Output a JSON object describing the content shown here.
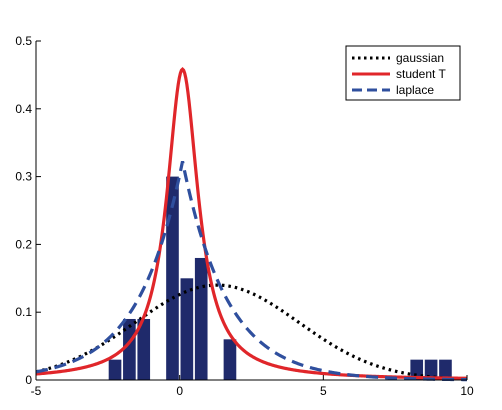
{
  "chart_data": {
    "type": "bar+line",
    "title": "",
    "xlabel": "",
    "ylabel": "",
    "xlim": [
      -5,
      10
    ],
    "ylim": [
      0,
      0.5
    ],
    "x_ticks": [
      -5,
      0,
      5,
      10
    ],
    "x_tick_labels": [
      "-5",
      "0",
      "5",
      "10"
    ],
    "y_ticks": [
      0,
      0.1,
      0.2,
      0.3,
      0.4,
      0.5
    ],
    "y_tick_labels": [
      "0",
      "0.1",
      "0.2",
      "0.3",
      "0.4",
      "0.5"
    ],
    "grid": false,
    "legend_position": "top-right",
    "histogram": {
      "color": "#1f2a6b",
      "bar_width": 0.5,
      "centers": [
        -2.25,
        -1.75,
        -1.25,
        -0.25,
        0.25,
        0.75,
        1.75,
        8.25,
        8.75,
        9.25
      ],
      "heights": [
        0.03,
        0.09,
        0.09,
        0.3,
        0.15,
        0.18,
        0.06,
        0.03,
        0.03,
        0.03
      ]
    },
    "series": [
      {
        "name": "gaussian",
        "color": "#000000",
        "style": "dotted",
        "curve": {
          "kind": "gaussian",
          "mu": 1.3,
          "sigma": 2.85
        }
      },
      {
        "name": "student T",
        "color": "#e0262a",
        "style": "solid",
        "curve": {
          "kind": "student_t",
          "mu": 0.1,
          "scale": 0.68,
          "nu": 0.9
        }
      },
      {
        "name": "laplace",
        "color": "#2f4f9e",
        "style": "dashed",
        "curve": {
          "kind": "laplace",
          "mu": 0.1,
          "b": 1.55
        }
      }
    ]
  }
}
